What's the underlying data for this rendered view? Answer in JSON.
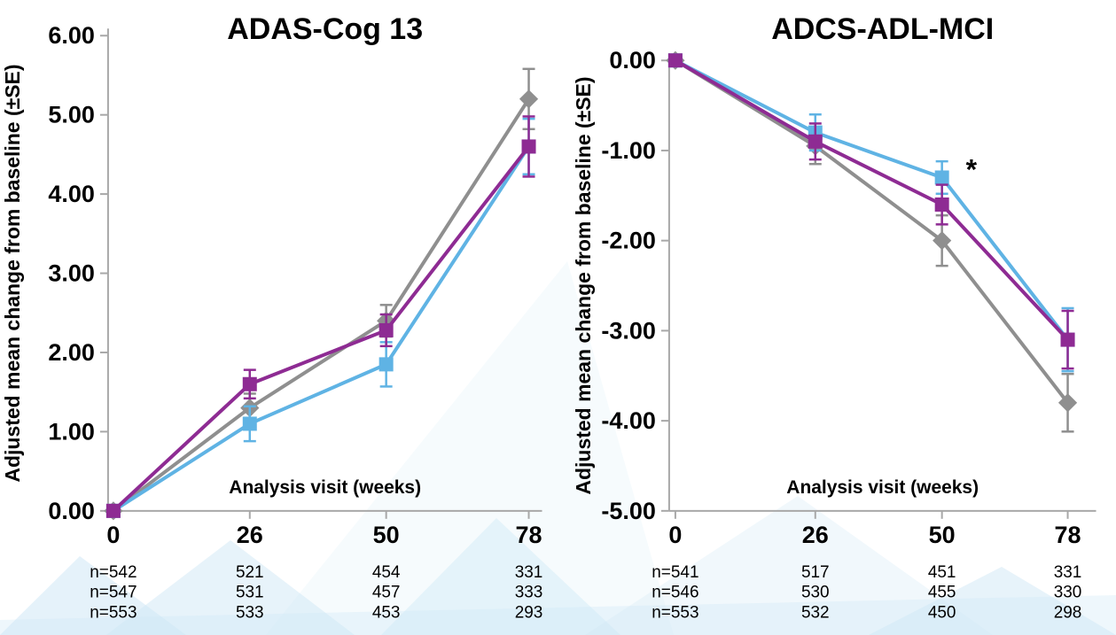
{
  "page": {
    "background": "#ffffff"
  },
  "colors": {
    "axis": "#a8a8a8",
    "text": "#000000",
    "gray_series": "#8f8f8f",
    "purple_series": "#8e2b93",
    "blue_series": "#5fb3e4",
    "watermark_blue": "#cfe8f6"
  },
  "chart_data": [
    {
      "type": "line",
      "title": "ADAS-Cog 13",
      "ylabel": "Adjusted mean change from baseline (±SE)",
      "xlabel": "Analysis visit (weeks)",
      "x_tick_labels": [
        "0",
        "26",
        "50",
        "78"
      ],
      "ylim": [
        0,
        6
      ],
      "grid": false,
      "legend": "none",
      "yticks": [
        {
          "v": 0,
          "label": "0.00"
        },
        {
          "v": 1,
          "label": "1.00"
        },
        {
          "v": 2,
          "label": "2.00"
        },
        {
          "v": 3,
          "label": "3.00"
        },
        {
          "v": 4,
          "label": "4.00"
        },
        {
          "v": 5,
          "label": "5.00"
        },
        {
          "v": 6,
          "label": "6.00"
        }
      ],
      "series": [
        {
          "name": "gray-diamond",
          "marker": "diamond",
          "color": "#8f8f8f",
          "values": [
            0,
            1.3,
            2.4,
            5.2
          ],
          "se": [
            0.05,
            0.18,
            0.2,
            0.38
          ]
        },
        {
          "name": "blue-square",
          "marker": "square",
          "color": "#5fb3e4",
          "values": [
            0,
            1.1,
            1.85,
            4.6
          ],
          "se": [
            0.05,
            0.22,
            0.28,
            0.35
          ]
        },
        {
          "name": "purple-square",
          "marker": "square",
          "color": "#8e2b93",
          "values": [
            0,
            1.6,
            2.28,
            4.6
          ],
          "se": [
            0.05,
            0.18,
            0.2,
            0.38
          ]
        }
      ],
      "annotations": [],
      "n_rows": [
        [
          "n=542",
          "521",
          "454",
          "331"
        ],
        [
          "n=547",
          "531",
          "457",
          "333"
        ],
        [
          "n=553",
          "533",
          "453",
          "293"
        ]
      ]
    },
    {
      "type": "line",
      "title": "ADCS-ADL-MCI",
      "ylabel": "Adjusted mean change from baseline (±SE)",
      "xlabel": "Analysis visit (weeks)",
      "x_tick_labels": [
        "0",
        "26",
        "50",
        "78"
      ],
      "ylim": [
        -5,
        0
      ],
      "grid": false,
      "legend": "none",
      "yticks": [
        {
          "v": 0,
          "label": "0.00"
        },
        {
          "v": -1,
          "label": "-1.00"
        },
        {
          "v": -2,
          "label": "-2.00"
        },
        {
          "v": -3,
          "label": "-3.00"
        },
        {
          "v": -4,
          "label": "-4.00"
        },
        {
          "v": -5,
          "label": "-5.00"
        }
      ],
      "series": [
        {
          "name": "gray-diamond",
          "marker": "diamond",
          "color": "#8f8f8f",
          "values": [
            0,
            -0.95,
            -2.0,
            -3.8
          ],
          "se": [
            0.04,
            0.2,
            0.28,
            0.32
          ]
        },
        {
          "name": "blue-square",
          "marker": "square",
          "color": "#5fb3e4",
          "values": [
            0,
            -0.8,
            -1.3,
            -3.1
          ],
          "se": [
            0.04,
            0.2,
            0.18,
            0.35
          ]
        },
        {
          "name": "purple-square",
          "marker": "square",
          "color": "#8e2b93",
          "values": [
            0,
            -0.9,
            -1.6,
            -3.1
          ],
          "se": [
            0.04,
            0.2,
            0.22,
            0.32
          ]
        }
      ],
      "annotations": [
        {
          "text": "*",
          "series": "blue-square",
          "x_index": 2,
          "color": "#5fb3e4"
        }
      ],
      "n_rows": [
        [
          "n=541",
          "517",
          "451",
          "331"
        ],
        [
          "n=546",
          "530",
          "455",
          "330"
        ],
        [
          "n=553",
          "532",
          "450",
          "298"
        ]
      ]
    }
  ]
}
